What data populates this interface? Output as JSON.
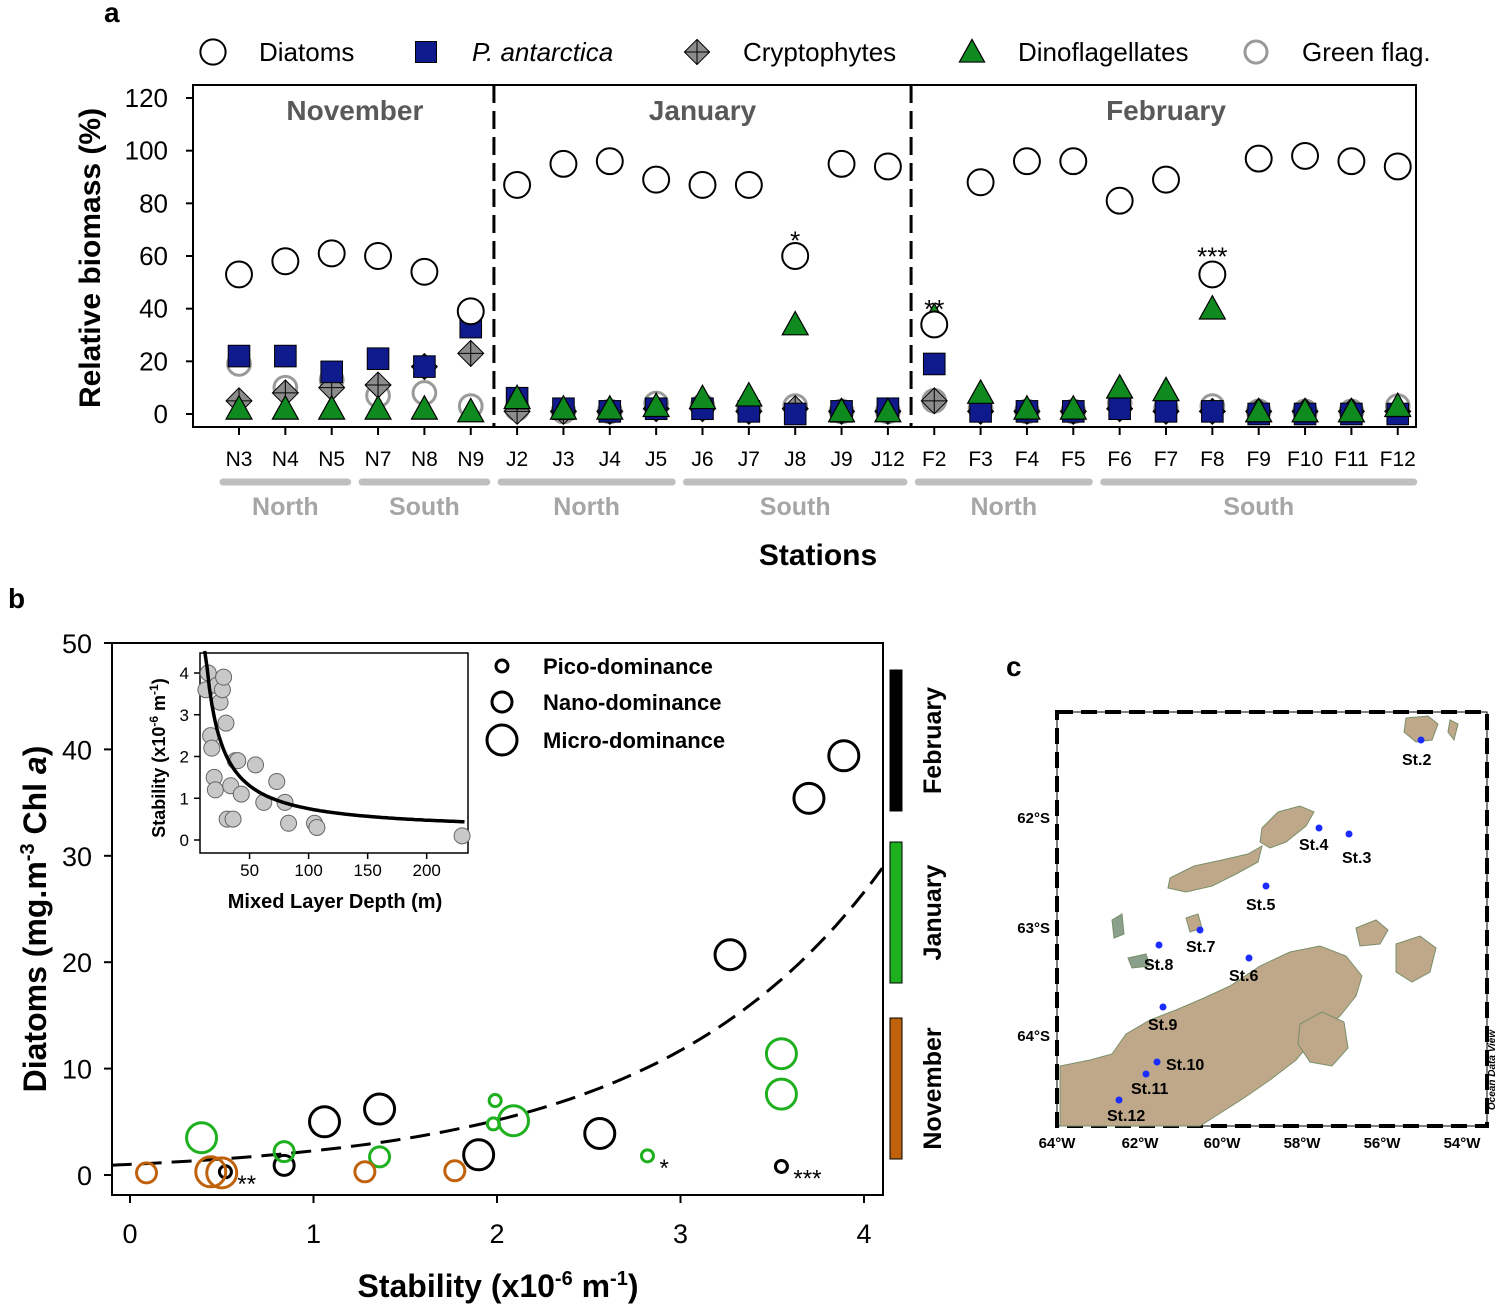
{
  "panels": {
    "a": {
      "label": "a",
      "legend": [
        {
          "name": "Diatoms",
          "style": "open_circle"
        },
        {
          "name": "P. antarctica",
          "style": "navy_square"
        },
        {
          "name": "Cryptophytes",
          "style": "grey_diamond"
        },
        {
          "name": "Dinoflagellates",
          "style": "green_triangle"
        },
        {
          "name": "Green flag.",
          "style": "grey_open_circle"
        }
      ],
      "months": [
        "November",
        "January",
        "February"
      ],
      "xlabel": "Stations",
      "ylabel": "Relative biomass (%)",
      "yticks": [
        "0",
        "20",
        "40",
        "60",
        "80",
        "100",
        "120"
      ],
      "regions": [
        {
          "label": "North",
          "from": 0,
          "to": 2
        },
        {
          "label": "South",
          "from": 3,
          "to": 5
        },
        {
          "label": "North",
          "from": 6,
          "to": 9
        },
        {
          "label": "South",
          "from": 10,
          "to": 14
        },
        {
          "label": "North",
          "from": 15,
          "to": 18
        },
        {
          "label": "South",
          "from": 19,
          "to": 25
        }
      ],
      "annotations": [
        {
          "station_index": 12,
          "text": "*",
          "value": 67
        },
        {
          "station_index": 15,
          "text": "**",
          "value": 41
        },
        {
          "station_index": 21,
          "text": "***",
          "value": 61
        }
      ]
    },
    "b": {
      "label": "b",
      "xlabel_main": "Stability (x10",
      "xlabel_exp": "-6",
      "xlabel_unit": " m",
      "xlabel_exp2": "-1",
      "xlabel_close": ")",
      "ylabel_main": "Diatoms (mg.m",
      "ylabel_exp": "-3",
      "ylabel_mid": " Chl ",
      "ylabel_italic": "a",
      "ylabel_close": ")",
      "xticks": [
        "0",
        "1",
        "2",
        "3",
        "4"
      ],
      "yticks": [
        "0",
        "10",
        "20",
        "30",
        "40",
        "50"
      ],
      "legend": [
        "Pico-dominance",
        "Nano-dominance",
        "Micro-dominance"
      ],
      "month_bars": [
        {
          "label": "February",
          "color": "#000000"
        },
        {
          "label": "January",
          "color": "#1fb01f"
        },
        {
          "label": "November",
          "color": "#c0620c"
        }
      ],
      "annotations": [
        "**",
        "*",
        "***"
      ],
      "inset": {
        "xlabel": "Mixed Layer Depth (m)",
        "ylabel_main": "Stability (x10",
        "ylabel_exp": "-6",
        "ylabel_unit": " m",
        "ylabel_exp2": "-1",
        "ylabel_close": ")",
        "xticks": [
          "50",
          "100",
          "150",
          "200"
        ],
        "yticks": [
          "0",
          "1",
          "2",
          "3",
          "4"
        ]
      }
    },
    "c": {
      "label": "c",
      "lat_labels": [
        "62°S",
        "63°S",
        "64°S"
      ],
      "lon_labels": [
        "64°W",
        "62°W",
        "60°W",
        "58°W",
        "56°W",
        "54°W"
      ],
      "credit": "Ocean Data View",
      "stations": [
        "St.2",
        "St.3",
        "St.4",
        "St.5",
        "St.6",
        "St.7",
        "St.8",
        "St.9",
        "St.10",
        "St.11",
        "St.12"
      ]
    }
  },
  "colors": {
    "navy": "#0f1a8c",
    "green": "#0f8a1f",
    "diamond": "#8c8c8c",
    "green_flag": "#9a9a9a",
    "jan_green": "#1fb01f",
    "nov_orange": "#c0620c",
    "land": "#bfa88a",
    "station_dot": "#1a2cff"
  },
  "chart_data": [
    {
      "type": "scatter",
      "title": "",
      "xlabel": "Stations",
      "ylabel": "Relative biomass (%)",
      "ylim": [
        0,
        120
      ],
      "categories": [
        "N3",
        "N4",
        "N5",
        "N7",
        "N8",
        "N9",
        "J2",
        "J3",
        "J4",
        "J5",
        "J6",
        "J7",
        "J8",
        "J9",
        "J12",
        "F2",
        "F3",
        "F4",
        "F5",
        "F6",
        "F7",
        "F8",
        "F9",
        "F10",
        "F11",
        "F12"
      ],
      "series": [
        {
          "name": "Diatoms",
          "values": [
            53,
            58,
            61,
            60,
            54,
            39,
            87,
            95,
            96,
            89,
            87,
            87,
            60,
            95,
            94,
            34,
            88,
            96,
            96,
            81,
            89,
            53,
            97,
            98,
            96,
            94
          ]
        },
        {
          "name": "P. antarctica",
          "values": [
            22,
            22,
            16,
            21,
            18,
            33,
            6,
            2,
            1,
            2,
            2,
            1,
            0,
            1,
            2,
            19,
            1,
            1,
            1,
            2,
            1,
            1,
            0,
            0,
            0,
            0
          ]
        },
        {
          "name": "Cryptophytes",
          "values": [
            5,
            8,
            10,
            11,
            18,
            23,
            1,
            1,
            1,
            2,
            2,
            1,
            2,
            1,
            1,
            5,
            1,
            1,
            1,
            2,
            1,
            1,
            1,
            1,
            1,
            1
          ]
        },
        {
          "name": "Dinoflagellates",
          "values": [
            2,
            2,
            2,
            2,
            2,
            1,
            6,
            2,
            2,
            3,
            6,
            7,
            34,
            1,
            1,
            37,
            8,
            2,
            2,
            10,
            9,
            40,
            1,
            1,
            1,
            3
          ]
        },
        {
          "name": "Green flag.",
          "values": [
            19,
            10,
            13,
            7,
            8,
            3,
            2,
            1,
            1,
            4,
            3,
            2,
            3,
            1,
            1,
            5,
            2,
            1,
            1,
            4,
            2,
            3,
            1,
            1,
            1,
            3
          ]
        }
      ]
    },
    {
      "type": "scatter",
      "title": "",
      "xlabel": "Stability (x10-6 m-1)",
      "ylabel": "Diatoms (mg.m-3 Chl a)",
      "xlim": [
        -0.1,
        4.1
      ],
      "ylim": [
        -2,
        50
      ],
      "series": [
        {
          "name": "February",
          "points": [
            {
              "x": 0.52,
              "y": 0.3,
              "size": "pico",
              "note": "**"
            },
            {
              "x": 0.84,
              "y": 0.9,
              "size": "nano"
            },
            {
              "x": 1.06,
              "y": 5.0,
              "size": "micro"
            },
            {
              "x": 1.36,
              "y": 6.2,
              "size": "micro"
            },
            {
              "x": 1.9,
              "y": 1.9,
              "size": "micro"
            },
            {
              "x": 2.56,
              "y": 3.9,
              "size": "micro"
            },
            {
              "x": 3.27,
              "y": 20.7,
              "size": "micro"
            },
            {
              "x": 3.55,
              "y": 0.8,
              "size": "pico",
              "note": "***"
            },
            {
              "x": 3.7,
              "y": 35.4,
              "size": "micro"
            },
            {
              "x": 3.89,
              "y": 39.4,
              "size": "micro"
            }
          ]
        },
        {
          "name": "January",
          "points": [
            {
              "x": 0.39,
              "y": 3.5,
              "size": "micro"
            },
            {
              "x": 0.84,
              "y": 2.2,
              "size": "nano"
            },
            {
              "x": 1.36,
              "y": 1.7,
              "size": "nano"
            },
            {
              "x": 1.98,
              "y": 4.8,
              "size": "pico"
            },
            {
              "x": 1.99,
              "y": 7.0,
              "size": "pico"
            },
            {
              "x": 2.09,
              "y": 5.1,
              "size": "micro"
            },
            {
              "x": 2.82,
              "y": 1.8,
              "size": "pico",
              "note": "*"
            },
            {
              "x": 3.55,
              "y": 7.6,
              "size": "micro"
            },
            {
              "x": 3.55,
              "y": 11.4,
              "size": "micro"
            }
          ]
        },
        {
          "name": "November",
          "points": [
            {
              "x": 0.09,
              "y": 0.2,
              "size": "nano"
            },
            {
              "x": 0.44,
              "y": 0.3,
              "size": "micro"
            },
            {
              "x": 0.5,
              "y": 0.2,
              "size": "micro"
            },
            {
              "x": 1.28,
              "y": 0.3,
              "size": "nano"
            },
            {
              "x": 1.77,
              "y": 0.4,
              "size": "nano"
            }
          ]
        }
      ],
      "fit": {
        "type": "exponential",
        "a": 1.0,
        "b": 0.82
      }
    },
    {
      "type": "scatter",
      "title": "inset",
      "xlabel": "Mixed Layer Depth (m)",
      "ylabel": "Stability (x10-6 m-1)",
      "xlim": [
        8,
        235
      ],
      "ylim": [
        -0.2,
        4.6
      ],
      "points": [
        {
          "x": 13,
          "y": 3.6
        },
        {
          "x": 15,
          "y": 4.0
        },
        {
          "x": 17,
          "y": 2.5
        },
        {
          "x": 18,
          "y": 2.2
        },
        {
          "x": 20,
          "y": 1.5
        },
        {
          "x": 21,
          "y": 1.2
        },
        {
          "x": 22,
          "y": 3.7
        },
        {
          "x": 25,
          "y": 3.3
        },
        {
          "x": 27,
          "y": 3.6
        },
        {
          "x": 28,
          "y": 3.9
        },
        {
          "x": 30,
          "y": 2.8
        },
        {
          "x": 31,
          "y": 0.5
        },
        {
          "x": 34,
          "y": 1.3
        },
        {
          "x": 36,
          "y": 0.5
        },
        {
          "x": 38,
          "y": 1.9
        },
        {
          "x": 40,
          "y": 1.9
        },
        {
          "x": 43,
          "y": 1.1
        },
        {
          "x": 55,
          "y": 1.8
        },
        {
          "x": 62,
          "y": 0.9
        },
        {
          "x": 73,
          "y": 1.4
        },
        {
          "x": 80,
          "y": 0.9
        },
        {
          "x": 83,
          "y": 0.4
        },
        {
          "x": 105,
          "y": 0.4
        },
        {
          "x": 107,
          "y": 0.3
        },
        {
          "x": 230,
          "y": 0.1
        }
      ],
      "fit": {
        "type": "power",
        "a": 55,
        "b": 1.0,
        "c": 0.2
      }
    }
  ]
}
